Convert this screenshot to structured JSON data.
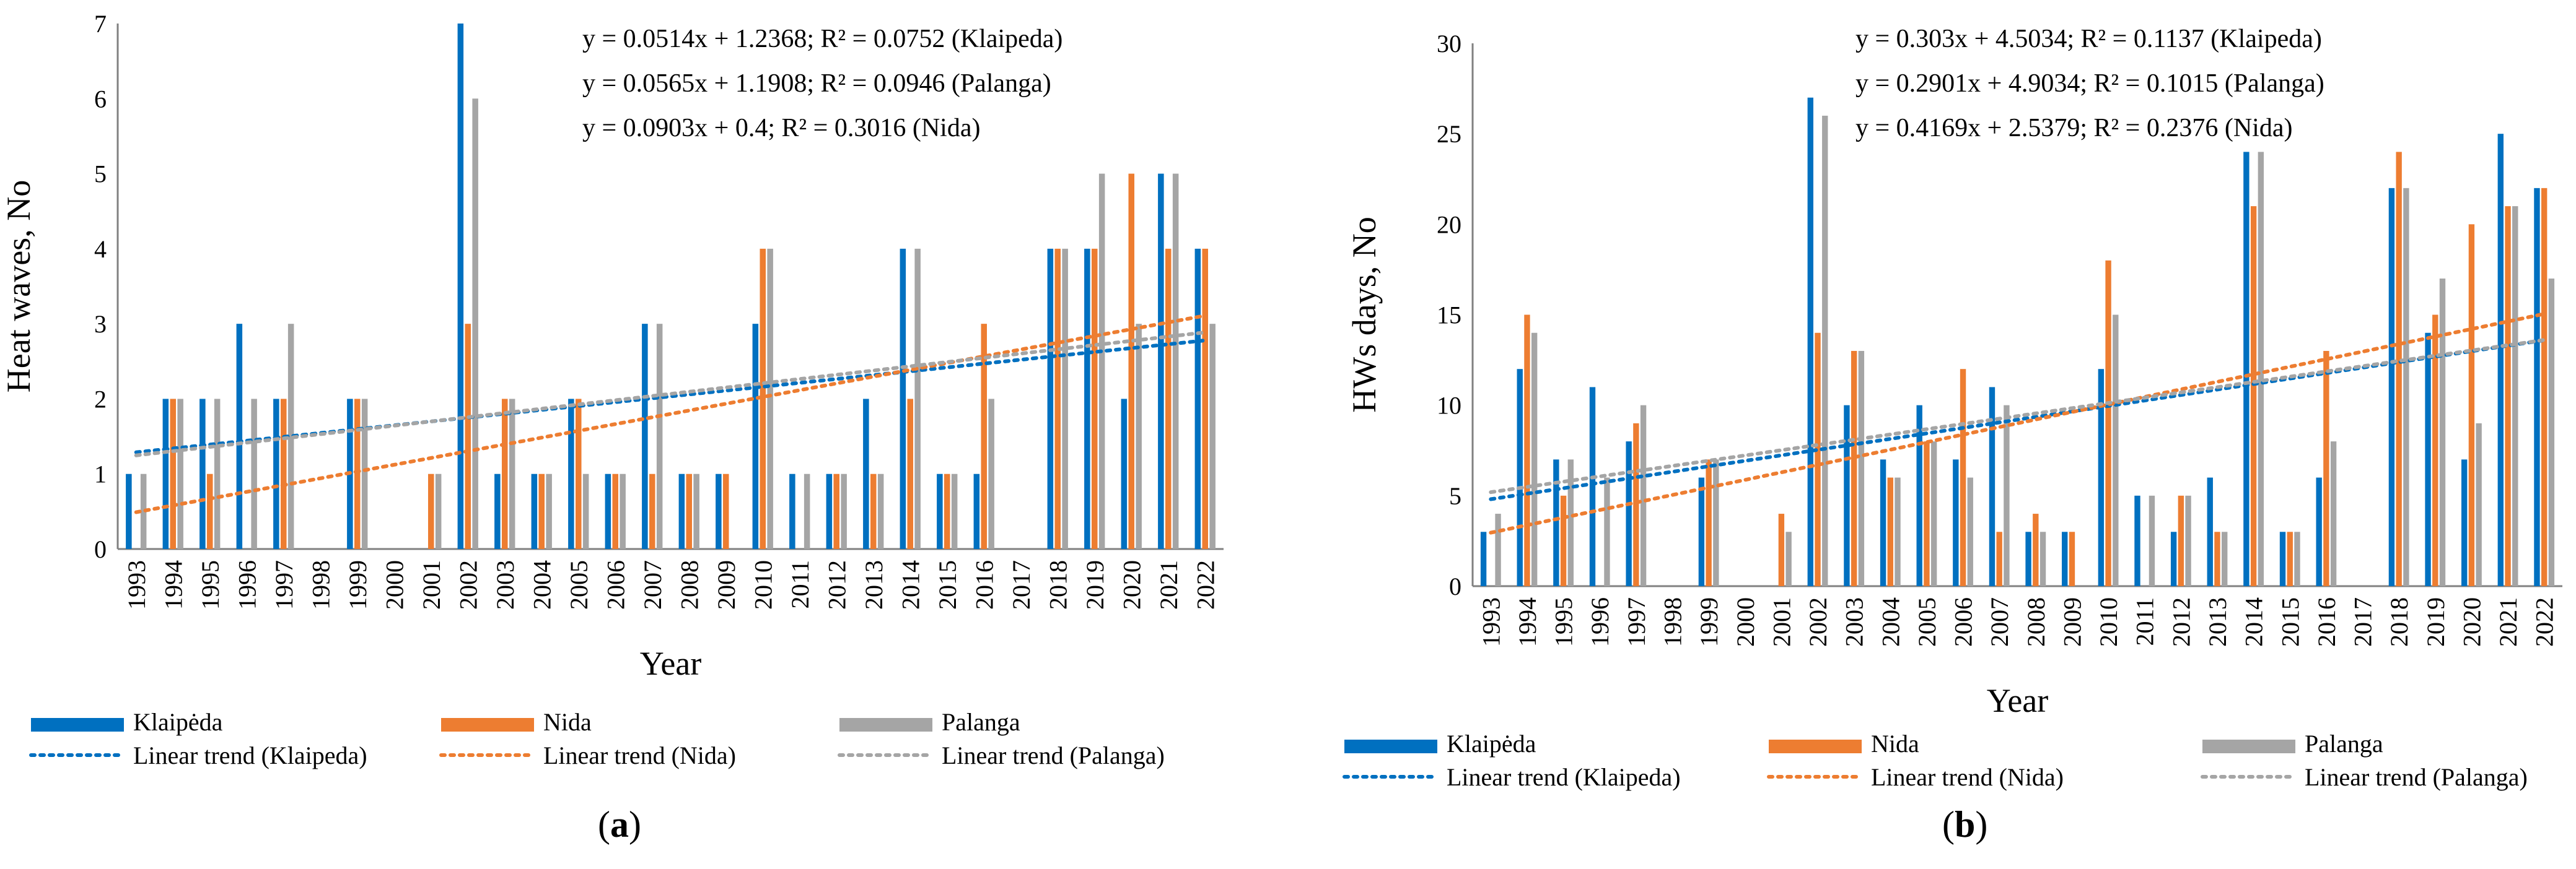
{
  "colors": {
    "klaipeda": "#0070C0",
    "nida": "#ED7D31",
    "palanga": "#A5A5A5",
    "axis": "#808080",
    "grid": "#000000"
  },
  "chart_data": [
    {
      "type": "bar",
      "panel": "a",
      "xlabel": "Year",
      "ylabel": "Heat waves, No",
      "ylim": [
        0,
        7
      ],
      "yticks": [
        0,
        1,
        2,
        3,
        4,
        5,
        6,
        7
      ],
      "categories": [
        "1993",
        "1994",
        "1995",
        "1996",
        "1997",
        "1998",
        "1999",
        "2000",
        "2001",
        "2002",
        "2003",
        "2004",
        "2005",
        "2006",
        "2007",
        "2008",
        "2009",
        "2010",
        "2011",
        "2012",
        "2013",
        "2014",
        "2015",
        "2016",
        "2017",
        "2018",
        "2019",
        "2020",
        "2021",
        "2022"
      ],
      "series": [
        {
          "name": "Klaipėda",
          "key": "klaipeda",
          "values": [
            1,
            2,
            2,
            3,
            2,
            0,
            2,
            0,
            0,
            7,
            1,
            1,
            2,
            1,
            3,
            1,
            1,
            3,
            1,
            1,
            2,
            4,
            1,
            1,
            0,
            4,
            4,
            2,
            5,
            4
          ]
        },
        {
          "name": "Nida",
          "key": "nida",
          "values": [
            0,
            2,
            1,
            0,
            2,
            0,
            2,
            0,
            1,
            3,
            2,
            1,
            2,
            1,
            1,
            1,
            1,
            4,
            0,
            1,
            1,
            2,
            1,
            3,
            0,
            4,
            4,
            5,
            4,
            4
          ]
        },
        {
          "name": "Palanga",
          "key": "palanga",
          "values": [
            1,
            2,
            2,
            2,
            3,
            0,
            2,
            0,
            1,
            6,
            2,
            1,
            1,
            1,
            3,
            1,
            0,
            4,
            1,
            1,
            1,
            4,
            1,
            2,
            0,
            4,
            5,
            3,
            5,
            3
          ]
        }
      ],
      "trends": [
        {
          "name": "Linear trend (Klaipeda)",
          "key": "klaipeda",
          "slope": 0.0514,
          "intercept": 1.2368
        },
        {
          "name": "Linear trend (Nida)",
          "key": "nida",
          "slope": 0.0903,
          "intercept": 0.4
        },
        {
          "name": "Linear trend (Palanga)",
          "key": "palanga",
          "slope": 0.0565,
          "intercept": 1.1908
        }
      ],
      "equations": [
        "y = 0.0514x + 1.2368; R² = 0.0752 (Klaipeda)",
        "y = 0.0565x + 1.1908; R² = 0.0946 (Palanga)",
        "y = 0.0903x + 0.4; R² = 0.3016 (Nida)"
      ]
    },
    {
      "type": "bar",
      "panel": "b",
      "xlabel": "Year",
      "ylabel": "HWs  days, No",
      "ylim": [
        0,
        30
      ],
      "yticks": [
        0,
        5,
        10,
        15,
        20,
        25,
        30
      ],
      "categories": [
        "1993",
        "1994",
        "1995",
        "1996",
        "1997",
        "1998",
        "1999",
        "2000",
        "2001",
        "2002",
        "2003",
        "2004",
        "2005",
        "2006",
        "2007",
        "2008",
        "2009",
        "2010",
        "2011",
        "2012",
        "2013",
        "2014",
        "2015",
        "2016",
        "2017",
        "2018",
        "2019",
        "2020",
        "2021",
        "2022"
      ],
      "series": [
        {
          "name": "Klaipėda",
          "key": "klaipeda",
          "values": [
            3,
            12,
            7,
            11,
            8,
            0,
            6,
            0,
            0,
            27,
            10,
            7,
            10,
            7,
            11,
            3,
            3,
            12,
            5,
            3,
            6,
            24,
            3,
            6,
            0,
            22,
            14,
            7,
            25,
            22
          ]
        },
        {
          "name": "Nida",
          "key": "nida",
          "values": [
            0,
            15,
            5,
            0,
            9,
            0,
            7,
            0,
            4,
            14,
            13,
            6,
            8,
            12,
            3,
            4,
            3,
            18,
            0,
            5,
            3,
            21,
            3,
            13,
            0,
            24,
            15,
            20,
            21,
            22
          ]
        },
        {
          "name": "Palanga",
          "key": "palanga",
          "values": [
            4,
            14,
            7,
            6,
            10,
            0,
            7,
            0,
            3,
            26,
            13,
            6,
            8,
            6,
            10,
            3,
            0,
            15,
            5,
            5,
            3,
            24,
            3,
            8,
            0,
            22,
            17,
            9,
            21,
            17
          ]
        }
      ],
      "trends": [
        {
          "name": "Linear trend (Klaipeda)",
          "key": "klaipeda",
          "slope": 0.303,
          "intercept": 4.5034
        },
        {
          "name": "Linear trend (Nida)",
          "key": "nida",
          "slope": 0.4169,
          "intercept": 2.5379
        },
        {
          "name": "Linear trend (Palanga)",
          "key": "palanga",
          "slope": 0.2901,
          "intercept": 4.9034
        }
      ],
      "equations": [
        "y = 0.303x + 4.5034; R² = 0.1137 (Klaipeda)",
        "y = 0.2901x + 4.9034; R² = 0.1015 (Palanga)",
        "y = 0.4169x + 2.5379; R² = 0.2376 (Nida)"
      ]
    }
  ],
  "legend": {
    "bars": [
      "Klaipėda",
      "Nida",
      "Palanga"
    ],
    "trends": [
      "Linear trend (Klaipeda)",
      "Linear trend (Nida)",
      "Linear trend (Palanga)"
    ]
  },
  "panels": {
    "a": "(a)",
    "b": "(b)"
  }
}
